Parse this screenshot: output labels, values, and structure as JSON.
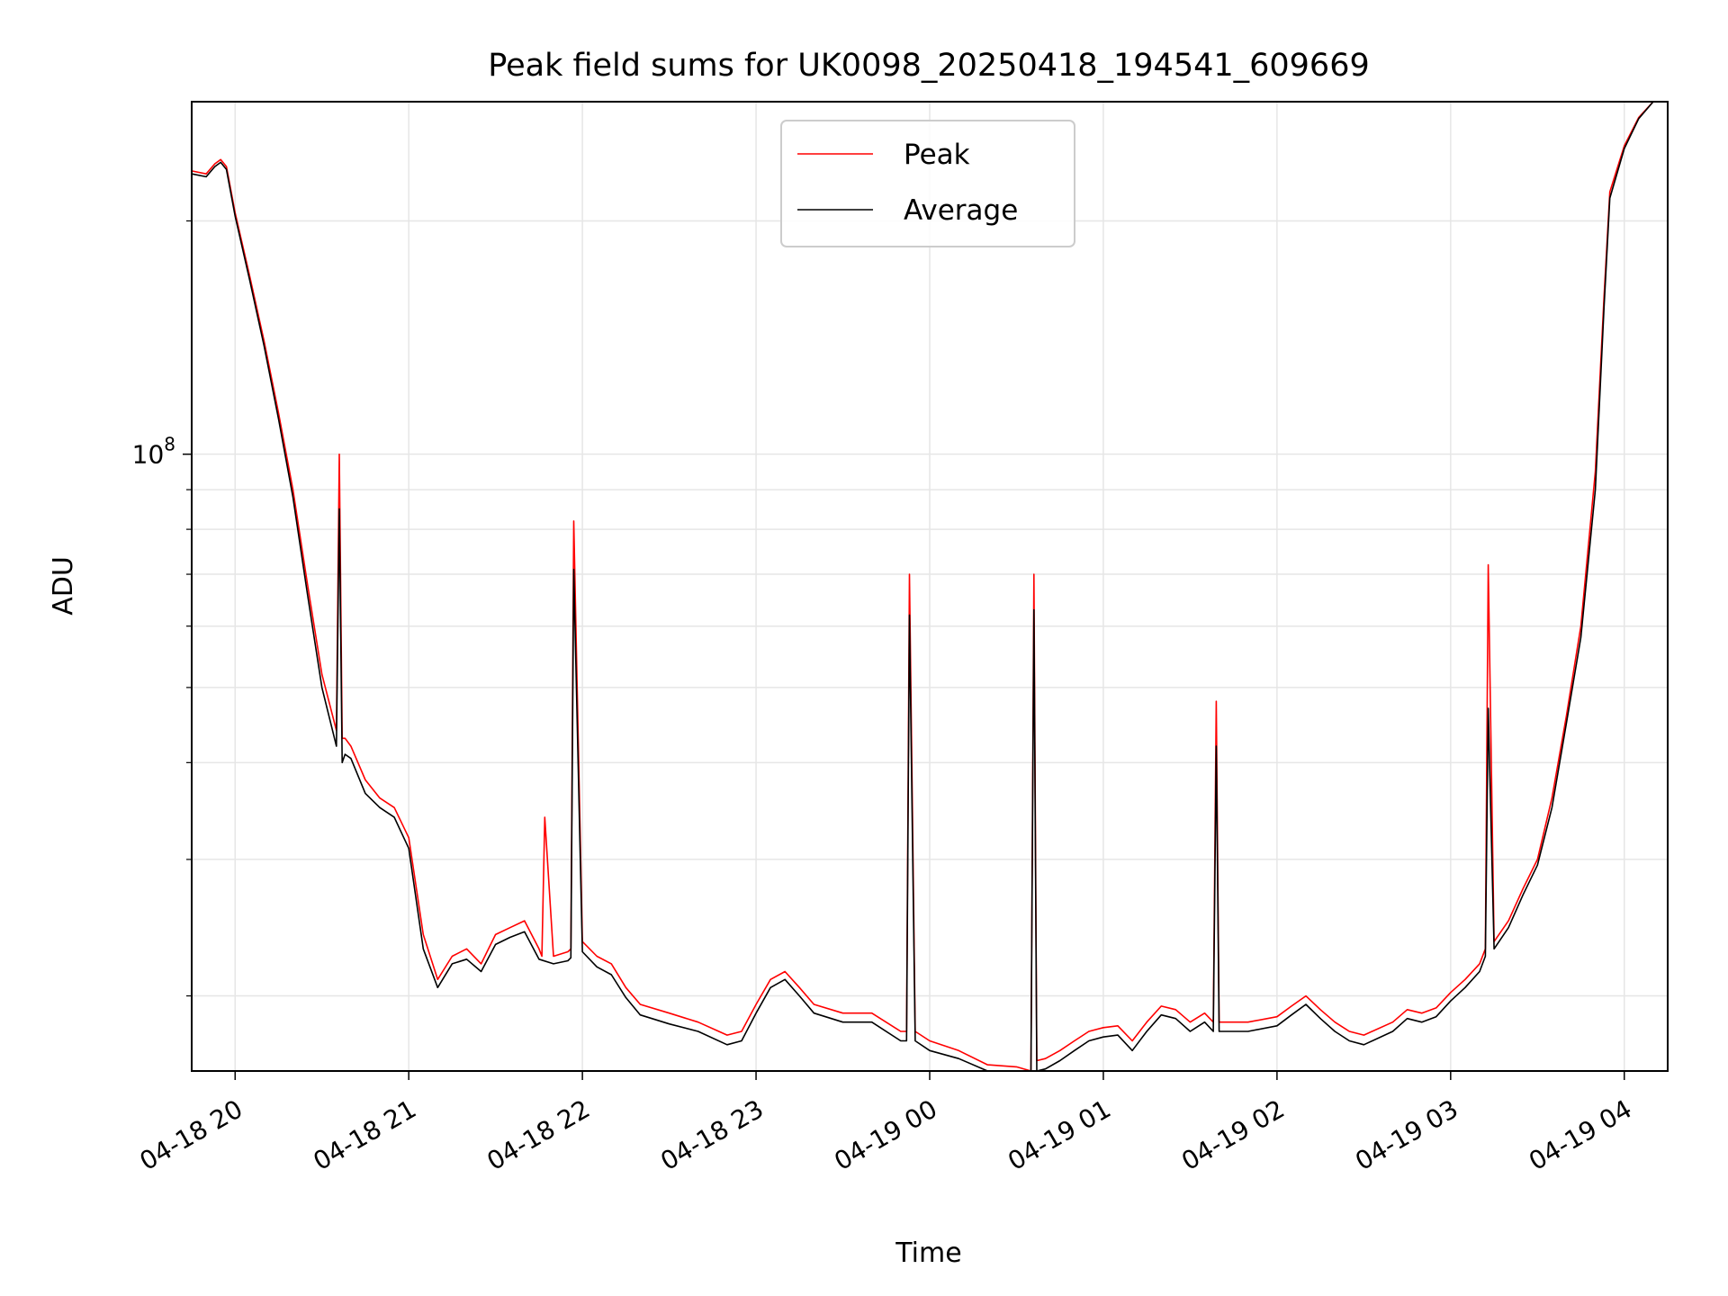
{
  "chart_data": {
    "type": "line",
    "title": "Peak field sums for UK0098_20250418_194541_609669",
    "xlabel": "Time",
    "ylabel": "ADU",
    "yscale": "log",
    "grid": true,
    "legend_position": "top-center",
    "x_tick_labels": [
      "04-18 20",
      "04-18 21",
      "04-18 22",
      "04-18 23",
      "04-19 00",
      "04-19 01",
      "04-19 02",
      "04-19 03",
      "04-19 04"
    ],
    "y_tick_label": "10^8",
    "y_tick_label_base": "10",
    "y_tick_label_exp": "8",
    "xlim": [
      "2025-04-18 19:45",
      "2025-04-19 04:15"
    ],
    "ylim": [
      16000000,
      285000000
    ],
    "series": [
      {
        "name": "Peak",
        "color": "#ff0000",
        "x": [
          "2025-04-18 19:45",
          "2025-04-18 19:50",
          "2025-04-18 19:53",
          "2025-04-18 19:55",
          "2025-04-18 19:57",
          "2025-04-18 20:00",
          "2025-04-18 20:05",
          "2025-04-18 20:10",
          "2025-04-18 20:15",
          "2025-04-18 20:20",
          "2025-04-18 20:25",
          "2025-04-18 20:30",
          "2025-04-18 20:35",
          "2025-04-18 20:36",
          "2025-04-18 20:37",
          "2025-04-18 20:38",
          "2025-04-18 20:40",
          "2025-04-18 20:45",
          "2025-04-18 20:50",
          "2025-04-18 20:55",
          "2025-04-18 21:00",
          "2025-04-18 21:05",
          "2025-04-18 21:10",
          "2025-04-18 21:15",
          "2025-04-18 21:20",
          "2025-04-18 21:25",
          "2025-04-18 21:30",
          "2025-04-18 21:35",
          "2025-04-18 21:40",
          "2025-04-18 21:45",
          "2025-04-18 21:46",
          "2025-04-18 21:47",
          "2025-04-18 21:50",
          "2025-04-18 21:55",
          "2025-04-18 21:56",
          "2025-04-18 21:57",
          "2025-04-18 22:00",
          "2025-04-18 22:05",
          "2025-04-18 22:10",
          "2025-04-18 22:15",
          "2025-04-18 22:20",
          "2025-04-18 22:30",
          "2025-04-18 22:40",
          "2025-04-18 22:50",
          "2025-04-18 22:55",
          "2025-04-18 23:00",
          "2025-04-18 23:05",
          "2025-04-18 23:10",
          "2025-04-18 23:15",
          "2025-04-18 23:20",
          "2025-04-18 23:30",
          "2025-04-18 23:40",
          "2025-04-18 23:50",
          "2025-04-18 23:52",
          "2025-04-18 23:53",
          "2025-04-18 23:55",
          "2025-04-19 00:00",
          "2025-04-19 00:10",
          "2025-04-19 00:20",
          "2025-04-19 00:30",
          "2025-04-19 00:35",
          "2025-04-19 00:36",
          "2025-04-19 00:37",
          "2025-04-19 00:40",
          "2025-04-19 00:45",
          "2025-04-19 00:50",
          "2025-04-19 00:55",
          "2025-04-19 01:00",
          "2025-04-19 01:05",
          "2025-04-19 01:10",
          "2025-04-19 01:15",
          "2025-04-19 01:20",
          "2025-04-19 01:25",
          "2025-04-19 01:30",
          "2025-04-19 01:35",
          "2025-04-19 01:38",
          "2025-04-19 01:39",
          "2025-04-19 01:40",
          "2025-04-19 01:45",
          "2025-04-19 01:50",
          "2025-04-19 02:00",
          "2025-04-19 02:05",
          "2025-04-19 02:10",
          "2025-04-19 02:15",
          "2025-04-19 02:20",
          "2025-04-19 02:25",
          "2025-04-19 02:30",
          "2025-04-19 02:40",
          "2025-04-19 02:45",
          "2025-04-19 02:50",
          "2025-04-19 02:55",
          "2025-04-19 03:00",
          "2025-04-19 03:05",
          "2025-04-19 03:10",
          "2025-04-19 03:12",
          "2025-04-19 03:13",
          "2025-04-19 03:15",
          "2025-04-19 03:20",
          "2025-04-19 03:25",
          "2025-04-19 03:30",
          "2025-04-19 03:35",
          "2025-04-19 03:40",
          "2025-04-19 03:45",
          "2025-04-19 03:50",
          "2025-04-19 03:53",
          "2025-04-19 03:55",
          "2025-04-19 04:00",
          "2025-04-19 04:05",
          "2025-04-19 04:10",
          "2025-04-19 04:15"
        ],
        "values": [
          232000000,
          230000000,
          237000000,
          240000000,
          235000000,
          205000000,
          170000000,
          140000000,
          113000000,
          90000000,
          68000000,
          52000000,
          44000000,
          100000000,
          43000000,
          43000000,
          42000000,
          38000000,
          36000000,
          35000000,
          32000000,
          24000000,
          21000000,
          22500000,
          23000000,
          22000000,
          24000000,
          24500000,
          25000000,
          23000000,
          22500000,
          34000000,
          22500000,
          22800000,
          23000000,
          82000000,
          23500000,
          22500000,
          22000000,
          20500000,
          19500000,
          19000000,
          18500000,
          17800000,
          18000000,
          19500000,
          21000000,
          21500000,
          20500000,
          19500000,
          19000000,
          19000000,
          18000000,
          18000000,
          70000000,
          18000000,
          17500000,
          17000000,
          16300000,
          16200000,
          16000000,
          70000000,
          16500000,
          16600000,
          17000000,
          17500000,
          18000000,
          18200000,
          18300000,
          17500000,
          18500000,
          19400000,
          19200000,
          18500000,
          19000000,
          18500000,
          48000000,
          18500000,
          18500000,
          18500000,
          18800000,
          19400000,
          20000000,
          19200000,
          18500000,
          18000000,
          17800000,
          18500000,
          19200000,
          19000000,
          19300000,
          20200000,
          21000000,
          22000000,
          23000000,
          72000000,
          23500000,
          25000000,
          27500000,
          30000000,
          36000000,
          46000000,
          60000000,
          95000000,
          160000000,
          218000000,
          250000000,
          272000000,
          285000000,
          285000000
        ]
      },
      {
        "name": "Average",
        "color": "#000000",
        "x": [
          "2025-04-18 19:45",
          "2025-04-18 19:50",
          "2025-04-18 19:53",
          "2025-04-18 19:55",
          "2025-04-18 19:57",
          "2025-04-18 20:00",
          "2025-04-18 20:05",
          "2025-04-18 20:10",
          "2025-04-18 20:15",
          "2025-04-18 20:20",
          "2025-04-18 20:25",
          "2025-04-18 20:30",
          "2025-04-18 20:35",
          "2025-04-18 20:36",
          "2025-04-18 20:37",
          "2025-04-18 20:38",
          "2025-04-18 20:40",
          "2025-04-18 20:45",
          "2025-04-18 20:50",
          "2025-04-18 20:55",
          "2025-04-18 21:00",
          "2025-04-18 21:05",
          "2025-04-18 21:10",
          "2025-04-18 21:15",
          "2025-04-18 21:20",
          "2025-04-18 21:25",
          "2025-04-18 21:30",
          "2025-04-18 21:35",
          "2025-04-18 21:40",
          "2025-04-18 21:45",
          "2025-04-18 21:50",
          "2025-04-18 21:55",
          "2025-04-18 21:56",
          "2025-04-18 21:57",
          "2025-04-18 22:00",
          "2025-04-18 22:05",
          "2025-04-18 22:10",
          "2025-04-18 22:15",
          "2025-04-18 22:20",
          "2025-04-18 22:30",
          "2025-04-18 22:40",
          "2025-04-18 22:50",
          "2025-04-18 22:55",
          "2025-04-18 23:00",
          "2025-04-18 23:05",
          "2025-04-18 23:10",
          "2025-04-18 23:15",
          "2025-04-18 23:20",
          "2025-04-18 23:30",
          "2025-04-18 23:40",
          "2025-04-18 23:50",
          "2025-04-18 23:52",
          "2025-04-18 23:53",
          "2025-04-18 23:55",
          "2025-04-19 00:00",
          "2025-04-19 00:10",
          "2025-04-19 00:20",
          "2025-04-19 00:30",
          "2025-04-19 00:35",
          "2025-04-19 00:36",
          "2025-04-19 00:37",
          "2025-04-19 00:40",
          "2025-04-19 00:45",
          "2025-04-19 00:50",
          "2025-04-19 00:55",
          "2025-04-19 01:00",
          "2025-04-19 01:05",
          "2025-04-19 01:10",
          "2025-04-19 01:15",
          "2025-04-19 01:20",
          "2025-04-19 01:25",
          "2025-04-19 01:30",
          "2025-04-19 01:35",
          "2025-04-19 01:38",
          "2025-04-19 01:39",
          "2025-04-19 01:40",
          "2025-04-19 01:45",
          "2025-04-19 01:50",
          "2025-04-19 02:00",
          "2025-04-19 02:05",
          "2025-04-19 02:10",
          "2025-04-19 02:15",
          "2025-04-19 02:20",
          "2025-04-19 02:25",
          "2025-04-19 02:30",
          "2025-04-19 02:40",
          "2025-04-19 02:45",
          "2025-04-19 02:50",
          "2025-04-19 02:55",
          "2025-04-19 03:00",
          "2025-04-19 03:05",
          "2025-04-19 03:10",
          "2025-04-19 03:12",
          "2025-04-19 03:13",
          "2025-04-19 03:15",
          "2025-04-19 03:20",
          "2025-04-19 03:25",
          "2025-04-19 03:30",
          "2025-04-19 03:35",
          "2025-04-19 03:40",
          "2025-04-19 03:45",
          "2025-04-19 03:50",
          "2025-04-19 03:53",
          "2025-04-19 03:55",
          "2025-04-19 04:00",
          "2025-04-19 04:05",
          "2025-04-19 04:10",
          "2025-04-19 04:15"
        ],
        "values": [
          230000000,
          228000000,
          235000000,
          238000000,
          233000000,
          203000000,
          168000000,
          138000000,
          111000000,
          88000000,
          66000000,
          50000000,
          42000000,
          85000000,
          40000000,
          41000000,
          40500000,
          36500000,
          35000000,
          34000000,
          31000000,
          23000000,
          20500000,
          22000000,
          22300000,
          21500000,
          23300000,
          23800000,
          24200000,
          22300000,
          22000000,
          22200000,
          22400000,
          71000000,
          22800000,
          21800000,
          21300000,
          19900000,
          18900000,
          18400000,
          18000000,
          17300000,
          17500000,
          19000000,
          20500000,
          21000000,
          20000000,
          19000000,
          18500000,
          18500000,
          17500000,
          17500000,
          62000000,
          17500000,
          17000000,
          16600000,
          15900000,
          15800000,
          15600000,
          63000000,
          16000000,
          16100000,
          16500000,
          17000000,
          17500000,
          17700000,
          17800000,
          17000000,
          18000000,
          18900000,
          18700000,
          18000000,
          18500000,
          18000000,
          42000000,
          18000000,
          18000000,
          18000000,
          18300000,
          18900000,
          19500000,
          18700000,
          18000000,
          17500000,
          17300000,
          18000000,
          18700000,
          18500000,
          18800000,
          19700000,
          20500000,
          21500000,
          22500000,
          47000000,
          23000000,
          24500000,
          27000000,
          29500000,
          35000000,
          45000000,
          58000000,
          90000000,
          155000000,
          214000000,
          248000000,
          271000000,
          285000000,
          285000000
        ]
      }
    ]
  }
}
